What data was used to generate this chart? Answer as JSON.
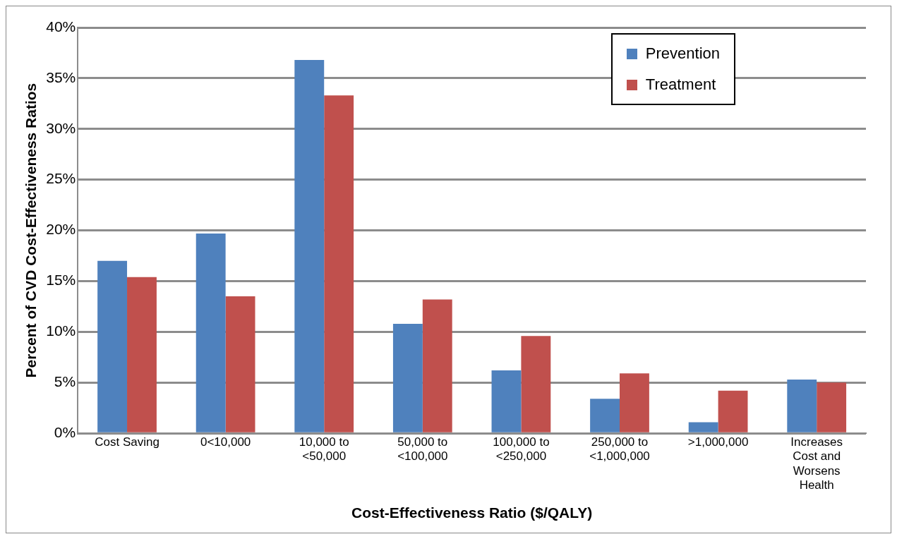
{
  "chart_data": {
    "type": "bar",
    "xlabel": "Cost-Effectiveness Ratio ($/QALY)",
    "ylabel": "Percent of CVD Cost-Effectiveness Ratios",
    "categories": [
      "Cost Saving",
      "0<10,000",
      "10,000 to\n<50,000",
      "50,000 to\n<100,000",
      "100,000 to\n<250,000",
      "250,000 to\n<1,000,000",
      ">1,000,000",
      "Increases\nCost and\nWorsens\nHealth"
    ],
    "series": [
      {
        "name": "Prevention",
        "color": "#4f81bd",
        "values": [
          17.0,
          19.7,
          36.8,
          10.8,
          6.2,
          3.4,
          1.1,
          5.3
        ]
      },
      {
        "name": "Treatment",
        "color": "#c0504d",
        "values": [
          15.4,
          13.5,
          33.3,
          13.2,
          9.6,
          5.9,
          4.2,
          5.0
        ]
      }
    ],
    "ylim": [
      0,
      40
    ],
    "yticks": [
      {
        "value": 0,
        "label": "0%"
      },
      {
        "value": 5,
        "label": "5%"
      },
      {
        "value": 10,
        "label": "10%"
      },
      {
        "value": 15,
        "label": "15%"
      },
      {
        "value": 20,
        "label": "20%"
      },
      {
        "value": 25,
        "label": "25%"
      },
      {
        "value": 30,
        "label": "30%"
      },
      {
        "value": 35,
        "label": "35%"
      },
      {
        "value": 40,
        "label": "40%"
      }
    ],
    "grid": "y",
    "legend": "top right"
  }
}
